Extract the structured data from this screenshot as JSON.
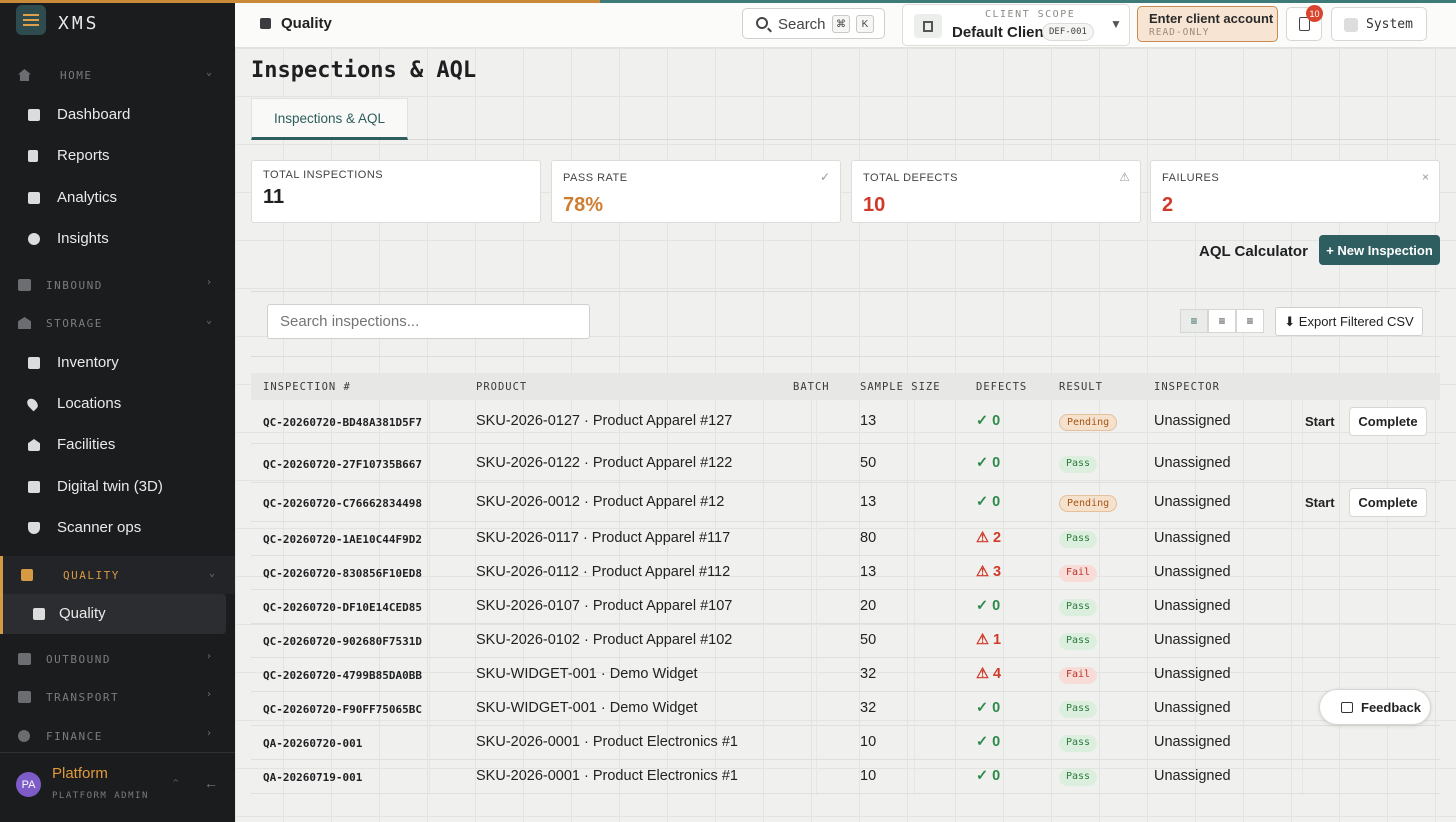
{
  "app": {
    "name": "XMS"
  },
  "sidebar": {
    "sections": [
      {
        "label": "HOME"
      },
      {
        "label": "INBOUND"
      },
      {
        "label": "STORAGE"
      },
      {
        "label": "QUALITY"
      },
      {
        "label": "OUTBOUND"
      },
      {
        "label": "TRANSPORT"
      },
      {
        "label": "FINANCE"
      }
    ],
    "items": [
      {
        "label": "Dashboard"
      },
      {
        "label": "Reports"
      },
      {
        "label": "Analytics"
      },
      {
        "label": "Insights"
      },
      {
        "label": "Inventory"
      },
      {
        "label": "Locations"
      },
      {
        "label": "Facilities"
      },
      {
        "label": "Digital twin (3D)"
      },
      {
        "label": "Scanner ops"
      },
      {
        "label": "Quality"
      }
    ],
    "user": {
      "initials": "PA",
      "name": "Platform",
      "role": "PLATFORM ADMIN"
    }
  },
  "header": {
    "section_title": "Quality",
    "search_label": "Search",
    "kbd_cmd": "⌘",
    "kbd_k": "K",
    "scope_caption": "CLIENT SCOPE",
    "scope_name": "Default Client",
    "scope_code": "DEF-001",
    "enter_account": "Enter client account",
    "enter_account_sub": "READ-ONLY",
    "notifications_count": "10",
    "system_label": "System"
  },
  "page": {
    "title": "Inspections & AQL",
    "tab": "Inspections & AQL"
  },
  "stats": [
    {
      "label": "TOTAL INSPECTIONS",
      "value": "11",
      "color": "#1e1f21"
    },
    {
      "label": "PASS RATE",
      "value": "78%",
      "color": "#cf7d2e"
    },
    {
      "label": "TOTAL DEFECTS",
      "value": "10",
      "color": "#cf3a2a"
    },
    {
      "label": "FAILURES",
      "value": "2",
      "color": "#cf3a2a"
    }
  ],
  "actions": {
    "aql_calculator": "AQL Calculator",
    "new_inspection": "+ New Inspection",
    "search_placeholder": "Search inspections...",
    "export": "⬇ Export Filtered CSV"
  },
  "table": {
    "columns": [
      "INSPECTION #",
      "PRODUCT",
      "BATCH",
      "SAMPLE SIZE",
      "DEFECTS",
      "RESULT",
      "INSPECTOR"
    ],
    "rows": [
      {
        "id": "QC-20260720-BD48A381D5F7",
        "product": "SKU-2026-0127 · Product Apparel #127",
        "sample": "13",
        "defects": "✓ 0",
        "result": "Pending",
        "inspector": "Unassigned",
        "start": "Start",
        "complete": "Complete"
      },
      {
        "id": "QC-20260720-27F10735B667",
        "product": "SKU-2026-0122 · Product Apparel #122",
        "sample": "50",
        "defects": "✓ 0",
        "result": "Pass",
        "inspector": "Unassigned"
      },
      {
        "id": "QC-20260720-C76662834498",
        "product": "SKU-2026-0012 · Product Apparel #12",
        "sample": "13",
        "defects": "✓ 0",
        "result": "Pending",
        "inspector": "Unassigned",
        "start": "Start",
        "complete": "Complete"
      },
      {
        "id": "QC-20260720-1AE10C44F9D2",
        "product": "SKU-2026-0117 · Product Apparel #117",
        "sample": "80",
        "defects": "⚠ 2",
        "result": "Pass",
        "inspector": "Unassigned"
      },
      {
        "id": "QC-20260720-830856F10ED8",
        "product": "SKU-2026-0112 · Product Apparel #112",
        "sample": "13",
        "defects": "⚠ 3",
        "result": "Fail",
        "inspector": "Unassigned"
      },
      {
        "id": "QC-20260720-DF10E14CED85",
        "product": "SKU-2026-0107 · Product Apparel #107",
        "sample": "20",
        "defects": "✓ 0",
        "result": "Pass",
        "inspector": "Unassigned"
      },
      {
        "id": "QC-20260720-902680F7531D",
        "product": "SKU-2026-0102 · Product Apparel #102",
        "sample": "50",
        "defects": "⚠ 1",
        "result": "Pass",
        "inspector": "Unassigned"
      },
      {
        "id": "QC-20260720-4799B85DA0BB",
        "product": "SKU-WIDGET-001 · Demo Widget",
        "sample": "32",
        "defects": "⚠ 4",
        "result": "Fail",
        "inspector": "Unassigned"
      },
      {
        "id": "QC-20260720-F90FF75065BC",
        "product": "SKU-WIDGET-001 · Demo Widget",
        "sample": "32",
        "defects": "✓ 0",
        "result": "Pass",
        "inspector": "Unassigned"
      },
      {
        "id": "QA-20260720-001",
        "product": "SKU-2026-0001 · Product Electronics #1",
        "sample": "10",
        "defects": "✓ 0",
        "result": "Pass",
        "inspector": "Unassigned"
      },
      {
        "id": "QA-20260719-001",
        "product": "SKU-2026-0001 · Product Electronics #1",
        "sample": "10",
        "defects": "✓ 0",
        "result": "Pass",
        "inspector": "Unassigned"
      }
    ]
  },
  "feedback": "Feedback"
}
